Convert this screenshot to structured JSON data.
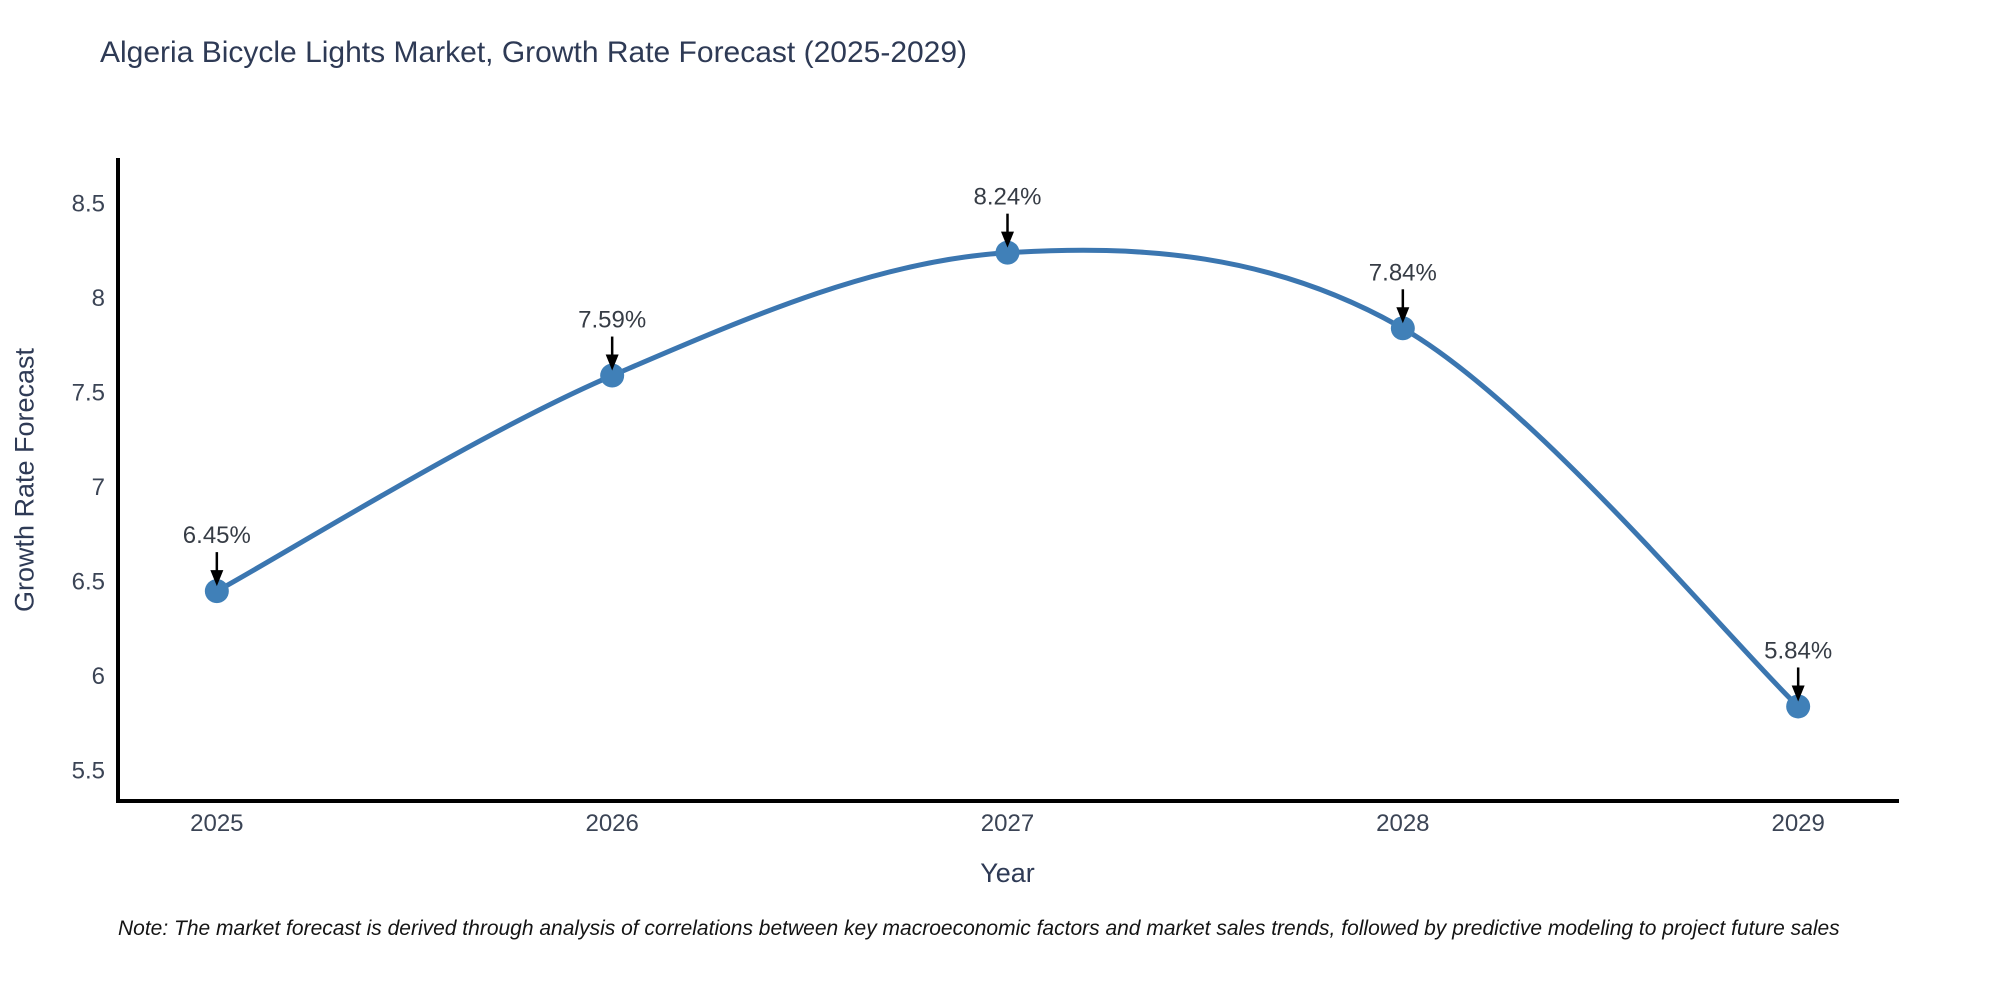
{
  "title": "Algeria Bicycle Lights Market, Growth Rate Forecast (2025-2029)",
  "note": "Note: The market forecast is derived through analysis of correlations between key macroeconomic factors and market sales trends, followed by predictive modeling to project future sales",
  "chart_data": {
    "type": "line",
    "title": "Algeria Bicycle Lights Market, Growth Rate Forecast (2025-2029)",
    "xlabel": "Year",
    "ylabel": "Growth Rate Forecast",
    "x": [
      2025,
      2026,
      2027,
      2028,
      2029
    ],
    "values": [
      6.45,
      7.59,
      8.24,
      7.84,
      5.84
    ],
    "point_labels": [
      "6.45%",
      "7.59%",
      "8.24%",
      "7.84%",
      "5.84%"
    ],
    "xticks": [
      2025,
      2026,
      2027,
      2028,
      2029
    ],
    "yticks": [
      5.5,
      6,
      6.5,
      7,
      7.5,
      8,
      8.5
    ],
    "xlim": [
      2024.75,
      2029.25
    ],
    "ylim": [
      5.34,
      8.73
    ],
    "line_shape": "spline",
    "grid": false,
    "legend_position": "none",
    "colors": {
      "line": "#3b76b0",
      "marker": "#4080b8",
      "axis": "#000000",
      "arrow": "#000000",
      "title_text": "#2e3a55",
      "tick_text": "#3b4455",
      "annotation_text": "#363c45",
      "background": "#ffffff"
    }
  }
}
